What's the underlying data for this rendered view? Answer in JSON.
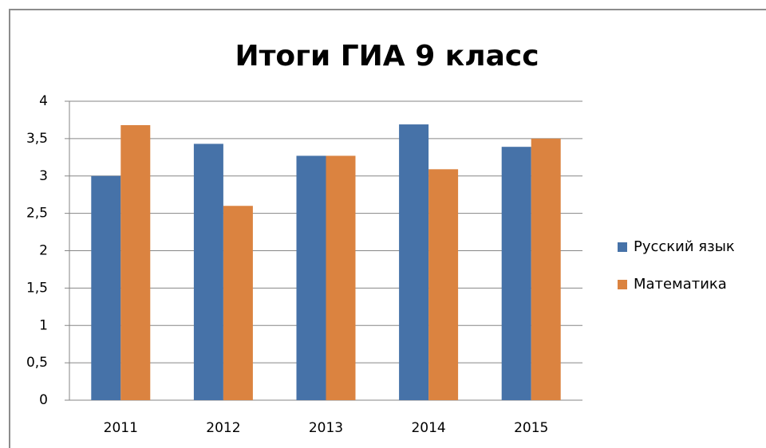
{
  "chart_data": {
    "type": "bar",
    "title": "Итоги ГИА 9 класс",
    "categories": [
      "2011",
      "2012",
      "2013",
      "2014",
      "2015"
    ],
    "series": [
      {
        "name": "Русский язык",
        "color": "#4672a8",
        "values": [
          3.0,
          3.43,
          3.27,
          3.69,
          3.39
        ]
      },
      {
        "name": "Математика",
        "color": "#db8340",
        "values": [
          3.68,
          2.6,
          3.27,
          3.09,
          3.5
        ]
      }
    ],
    "ylim": [
      0,
      4
    ],
    "yticks": [
      0,
      {
        "value": 0.5,
        "label": "0,5"
      },
      1,
      {
        "value": 1.5,
        "label": "1,5"
      },
      2,
      {
        "value": 2.5,
        "label": "2,5"
      },
      3,
      {
        "value": 3.5,
        "label": "3,5"
      },
      4
    ],
    "grid": true,
    "legend": "right"
  }
}
